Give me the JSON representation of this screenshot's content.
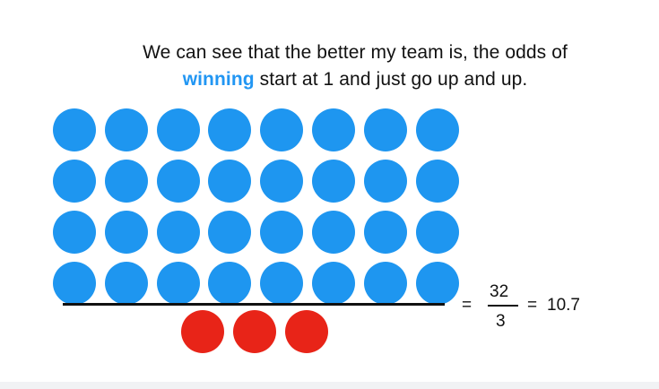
{
  "caption": {
    "line1": "We can see that the better my team is, the odds of",
    "highlight": "winning",
    "line2_rest": " start at 1 and just go up and up."
  },
  "colors": {
    "win": "#1e96f0",
    "loss": "#e82418",
    "highlight_text": "#2196f3"
  },
  "dots": {
    "wins": 32,
    "losses": 3
  },
  "equation": {
    "equals_left": "=",
    "numerator": "32",
    "denominator": "3",
    "equals_right": "=",
    "result": "10.7"
  }
}
